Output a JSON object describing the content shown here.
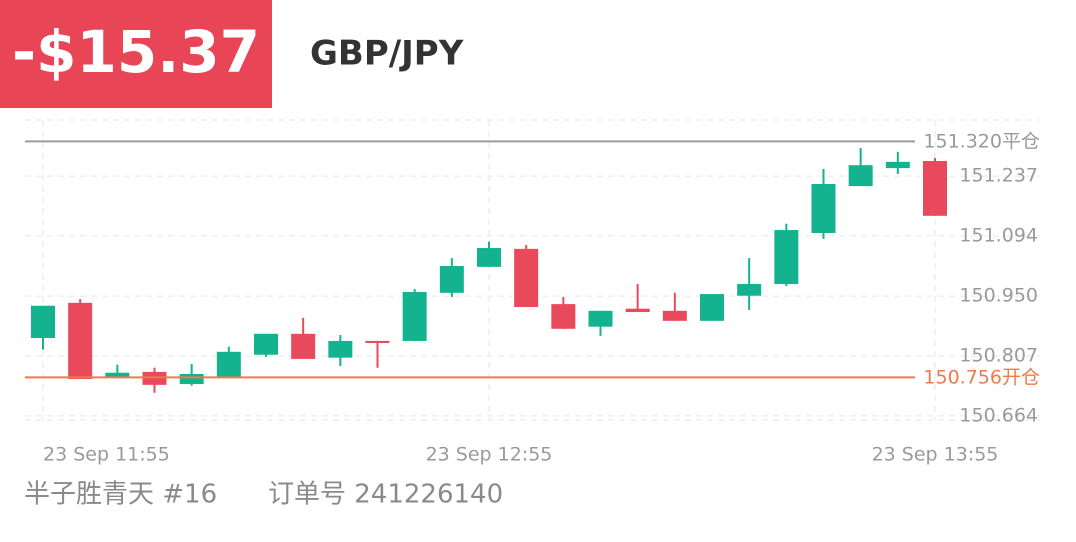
{
  "header": {
    "pnl": "-$15.37",
    "symbol": "GBP/JPY"
  },
  "footer": {
    "user": "半子胜青天 #16",
    "order": "订单号 241226140"
  },
  "chart_data": {
    "type": "candlestick",
    "categories": [
      "23 Sep 11:55",
      null,
      null,
      null,
      null,
      null,
      null,
      null,
      null,
      null,
      null,
      null,
      "23 Sep 12:55",
      null,
      null,
      null,
      null,
      null,
      null,
      null,
      null,
      null,
      null,
      null,
      "23 Sep 13:55"
    ],
    "open": [
      150.85,
      150.934,
      150.755,
      150.769,
      150.74,
      150.755,
      150.81,
      150.86,
      150.803,
      150.843,
      150.843,
      150.958,
      151.02,
      151.063,
      150.931,
      150.877,
      150.92,
      150.915,
      150.891,
      150.951,
      150.979,
      151.101,
      151.213,
      151.256,
      151.273
    ],
    "high": [
      150.927,
      150.943,
      150.786,
      150.779,
      150.788,
      150.829,
      150.86,
      150.898,
      150.857,
      150.843,
      150.967,
      151.041,
      151.08,
      151.072,
      150.948,
      150.915,
      150.979,
      150.958,
      150.955,
      151.041,
      151.123,
      151.254,
      151.304,
      151.295,
      151.28
    ],
    "low": [
      150.822,
      150.752,
      150.755,
      150.719,
      150.736,
      150.755,
      150.805,
      150.8,
      150.783,
      150.779,
      150.843,
      150.948,
      151.02,
      150.924,
      150.872,
      150.855,
      150.912,
      150.891,
      150.891,
      150.917,
      150.974,
      151.087,
      151.213,
      151.242,
      151.142
    ],
    "close": [
      150.927,
      150.752,
      150.767,
      150.738,
      150.764,
      150.817,
      150.86,
      150.8,
      150.843,
      150.838,
      150.96,
      151.022,
      151.065,
      150.924,
      150.872,
      150.915,
      150.912,
      150.891,
      150.955,
      150.979,
      151.108,
      151.218,
      151.263,
      151.271,
      151.142
    ],
    "up_color": "#13b38f",
    "down_color": "#e84a5b",
    "ylim": [
      150.654,
      151.371
    ],
    "yticks": [
      150.664,
      150.807,
      {
        "value": 150.95,
        "label": "150.950"
      },
      151.094,
      151.237
    ],
    "grid": true,
    "close_line": {
      "value": 151.32,
      "value_label": "151.320",
      "text": "平仓",
      "color": "#9a9a9a"
    },
    "open_line": {
      "value": 150.756,
      "value_label": "150.756",
      "text": "开仓",
      "color": "#f07a4a"
    }
  }
}
